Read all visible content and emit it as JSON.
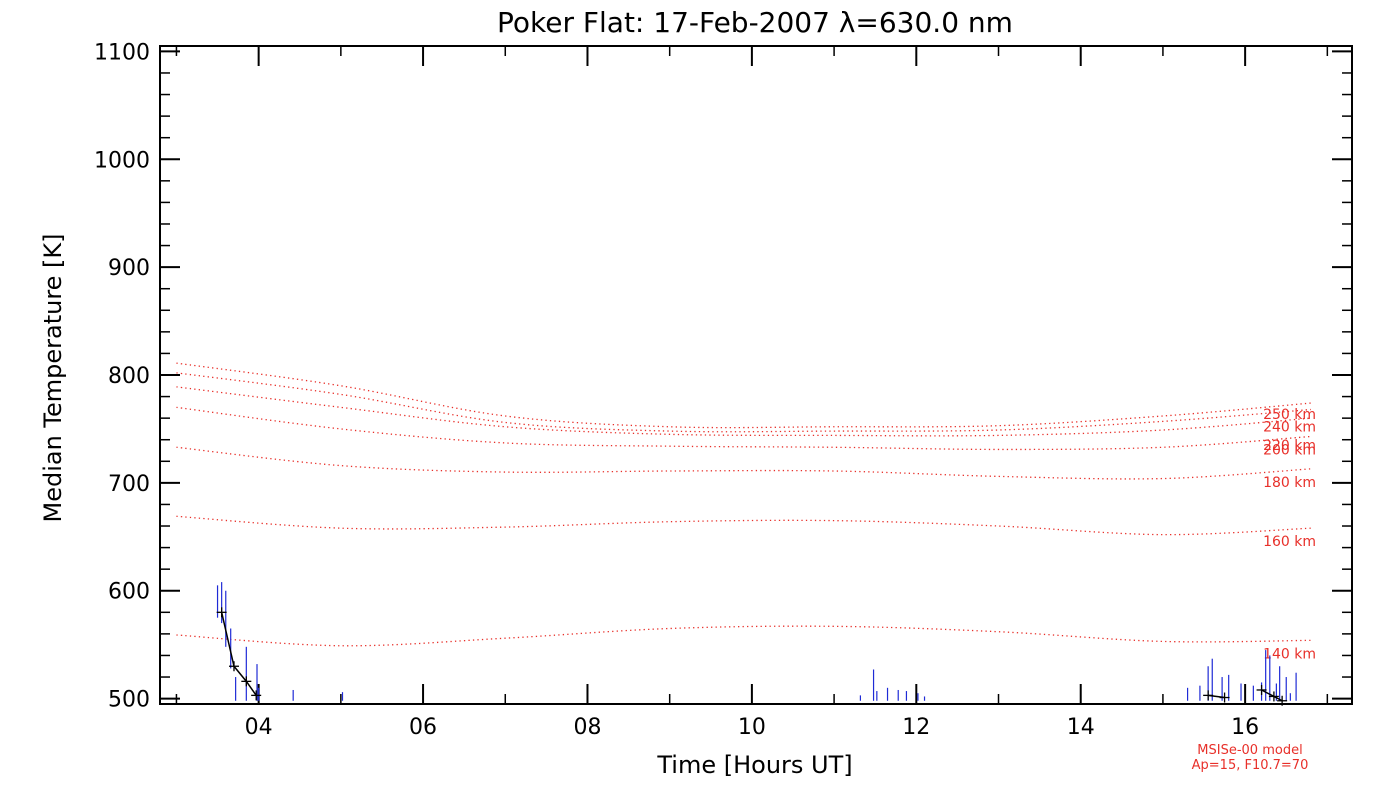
{
  "chart_data": {
    "type": "line",
    "title": "Poker Flat: 17-Feb-2007 λ=630.0 nm",
    "xlabel": "Time [Hours UT]",
    "ylabel": "Median Temperature [K]",
    "xlim": [
      2.8,
      17.3
    ],
    "ylim": [
      495,
      1105
    ],
    "x_ticks": [
      4,
      6,
      8,
      10,
      12,
      14,
      16
    ],
    "x_tick_labels": [
      "04",
      "06",
      "08",
      "10",
      "12",
      "14",
      "16"
    ],
    "y_ticks": [
      500,
      600,
      700,
      800,
      900,
      1000,
      1100
    ],
    "y_tick_labels": [
      "500",
      "600",
      "700",
      "800",
      "900",
      "1000",
      "1100"
    ],
    "model_label_line1": "MSISe-00 model",
    "model_label_line2": "Ap=15, F10.7=70",
    "colors": {
      "model": "#e8302a",
      "measured": "#1f2bd6",
      "median": "#000000",
      "axes": "#000000"
    },
    "model_series": [
      {
        "name": "140 km",
        "label": "140 km",
        "x": [
          3.0,
          5.0,
          7.0,
          9.0,
          11.0,
          13.0,
          15.0,
          16.8
        ],
        "values": [
          559,
          549,
          556,
          565,
          567,
          562,
          553,
          554
        ]
      },
      {
        "name": "160 km",
        "label": "160 km",
        "x": [
          3.0,
          5.0,
          7.0,
          9.0,
          11.0,
          13.0,
          15.0,
          16.8
        ],
        "values": [
          669,
          658,
          659,
          664,
          665,
          660,
          652,
          658
        ]
      },
      {
        "name": "180 km",
        "label": "180 km",
        "x": [
          3.0,
          5.0,
          7.0,
          9.0,
          11.0,
          13.0,
          15.0,
          16.8
        ],
        "values": [
          733,
          716,
          710,
          711,
          711,
          706,
          704,
          713
        ]
      },
      {
        "name": "200 km",
        "label": "200 km",
        "x": [
          3.0,
          5.0,
          7.0,
          9.0,
          11.0,
          13.0,
          15.0,
          16.8
        ],
        "values": [
          770,
          750,
          737,
          734,
          733,
          731,
          733,
          743
        ]
      },
      {
        "name": "220 km",
        "label": "220 km",
        "x": [
          3.0,
          5.0,
          7.0,
          9.0,
          11.0,
          13.0,
          15.0,
          16.8
        ],
        "values": [
          789,
          770,
          752,
          745,
          744,
          744,
          749,
          760
        ]
      },
      {
        "name": "240 km",
        "label": "240 km",
        "x": [
          3.0,
          5.0,
          7.0,
          9.0,
          11.0,
          13.0,
          15.0,
          16.8
        ],
        "values": [
          802,
          782,
          756,
          748,
          748,
          749,
          757,
          768
        ]
      },
      {
        "name": "250 km",
        "label": "250 km",
        "x": [
          3.0,
          5.0,
          7.0,
          9.0,
          11.0,
          13.0,
          15.0,
          16.8
        ],
        "values": [
          811,
          790,
          762,
          752,
          752,
          753,
          762,
          774
        ]
      }
    ],
    "median_series": {
      "name": "median temperature",
      "segments": [
        {
          "x": [
            3.55,
            3.7,
            3.85,
            3.97
          ],
          "values": [
            580,
            530,
            516,
            503
          ]
        },
        {
          "x": [
            15.55,
            15.75
          ],
          "values": [
            503,
            501
          ]
        },
        {
          "x": [
            16.2,
            16.35,
            16.45
          ],
          "values": [
            508,
            502,
            498
          ]
        }
      ]
    },
    "measurements": {
      "name": "individual samples",
      "x": [
        3.5,
        3.55,
        3.6,
        3.66,
        3.72,
        3.85,
        3.98,
        4.0,
        4.42,
        5.02,
        11.32,
        11.48,
        11.52,
        11.65,
        11.78,
        11.88,
        12.02,
        12.1,
        15.3,
        15.45,
        15.55,
        15.6,
        15.72,
        15.8,
        15.95,
        16.1,
        16.2,
        16.25,
        16.3,
        16.38,
        16.42,
        16.5,
        16.55,
        16.62
      ],
      "high": [
        605,
        608,
        600,
        565,
        520,
        548,
        532,
        510,
        508,
        506,
        503,
        527,
        507,
        510,
        508,
        507,
        505,
        502,
        510,
        512,
        530,
        537,
        520,
        522,
        514,
        512,
        515,
        545,
        540,
        514,
        530,
        520,
        505,
        524
      ],
      "low": [
        575,
        570,
        548,
        528,
        498,
        498,
        498,
        498,
        498,
        498,
        498,
        498,
        498,
        498,
        498,
        498,
        498,
        498,
        498,
        498,
        498,
        498,
        498,
        498,
        498,
        498,
        498,
        498,
        498,
        498,
        498,
        498,
        498,
        498
      ]
    }
  }
}
